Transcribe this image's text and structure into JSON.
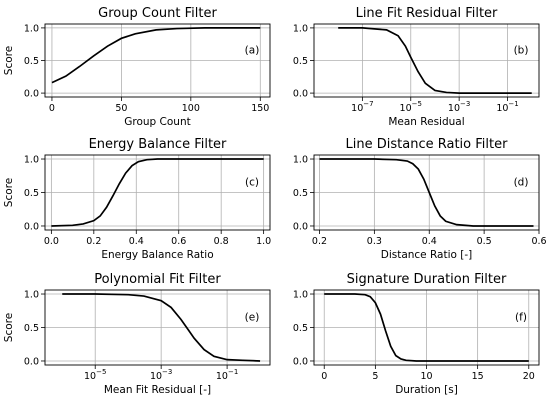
{
  "chart_data": [
    {
      "type": "line",
      "tag": "(a)",
      "title": "Group Count Filter",
      "xlabel": "Group Count",
      "ylabel": "Score",
      "xscale": "linear",
      "xlim": [
        -5,
        157
      ],
      "ylim": [
        -0.06,
        1.06
      ],
      "xticks": [
        0,
        50,
        100,
        150
      ],
      "xtick_labels": [
        "0",
        "50",
        "100",
        "150"
      ],
      "yticks": [
        0.0,
        0.5,
        1.0
      ],
      "ytick_labels": [
        "0.0",
        "0.5",
        "1.0"
      ],
      "grid": true,
      "series": [
        {
          "x": [
            0,
            10,
            20,
            30,
            40,
            50,
            60,
            75,
            90,
            110,
            130,
            150
          ],
          "y": [
            0.16,
            0.26,
            0.41,
            0.57,
            0.72,
            0.84,
            0.91,
            0.97,
            0.99,
            1.0,
            1.0,
            1.0
          ]
        }
      ]
    },
    {
      "type": "line",
      "tag": "(b)",
      "title": "Line Fit Residual Filter",
      "xlabel": "Mean Residual",
      "ylabel": "",
      "xscale": "log",
      "xlim": [
        1e-09,
        2
      ],
      "ylim": [
        -0.06,
        1.06
      ],
      "xticks": [
        1e-07,
        1e-05,
        0.001,
        0.1
      ],
      "xtick_labels": [
        "10^-7",
        "10^-5",
        "10^-3",
        "10^-1"
      ],
      "yticks": [
        0.0,
        0.5,
        1.0
      ],
      "ytick_labels": [
        "0.0",
        "0.5",
        "1.0"
      ],
      "grid": true,
      "series": [
        {
          "x": [
            1e-08,
            1e-07,
            1e-06,
            3e-06,
            6e-06,
            1e-05,
            2e-05,
            4e-05,
            0.0001,
            0.0003,
            0.001,
            0.01,
            0.1,
            1
          ],
          "y": [
            1.0,
            1.0,
            0.97,
            0.88,
            0.72,
            0.55,
            0.33,
            0.15,
            0.04,
            0.01,
            0.0,
            0.0,
            0.0,
            0.0
          ]
        }
      ]
    },
    {
      "type": "line",
      "tag": "(c)",
      "title": "Energy Balance Filter",
      "xlabel": "Energy Balance Ratio",
      "ylabel": "Score",
      "xscale": "linear",
      "xlim": [
        -0.03,
        1.03
      ],
      "ylim": [
        -0.06,
        1.06
      ],
      "xticks": [
        0.0,
        0.2,
        0.4,
        0.6,
        0.8,
        1.0
      ],
      "xtick_labels": [
        "0.0",
        "0.2",
        "0.4",
        "0.6",
        "0.8",
        "1.0"
      ],
      "yticks": [
        0.0,
        0.5,
        1.0
      ],
      "ytick_labels": [
        "0.0",
        "0.5",
        "1.0"
      ],
      "grid": true,
      "series": [
        {
          "x": [
            0.0,
            0.1,
            0.15,
            0.2,
            0.23,
            0.26,
            0.29,
            0.32,
            0.35,
            0.38,
            0.41,
            0.45,
            0.5,
            0.6,
            0.8,
            1.0
          ],
          "y": [
            0.0,
            0.01,
            0.03,
            0.08,
            0.15,
            0.28,
            0.45,
            0.63,
            0.79,
            0.9,
            0.96,
            0.99,
            1.0,
            1.0,
            1.0,
            1.0
          ]
        }
      ]
    },
    {
      "type": "line",
      "tag": "(d)",
      "title": "Line Distance Ratio Filter",
      "xlabel": "Distance Ratio [-]",
      "ylabel": "",
      "xscale": "linear",
      "xlim": [
        0.19,
        0.6
      ],
      "ylim": [
        -0.06,
        1.06
      ],
      "xticks": [
        0.2,
        0.3,
        0.4,
        0.5,
        0.6
      ],
      "xtick_labels": [
        "0.2",
        "0.3",
        "0.4",
        "0.5",
        "0.6"
      ],
      "yticks": [
        0.0,
        0.5,
        1.0
      ],
      "ytick_labels": [
        "0.0",
        "0.5",
        "1.0"
      ],
      "grid": true,
      "series": [
        {
          "x": [
            0.2,
            0.3,
            0.34,
            0.36,
            0.37,
            0.38,
            0.39,
            0.4,
            0.41,
            0.42,
            0.43,
            0.45,
            0.48,
            0.55,
            0.59
          ],
          "y": [
            1.0,
            1.0,
            0.99,
            0.97,
            0.93,
            0.85,
            0.7,
            0.5,
            0.3,
            0.15,
            0.07,
            0.02,
            0.0,
            0.0,
            0.0
          ]
        }
      ]
    },
    {
      "type": "line",
      "tag": "(e)",
      "title": "Polynomial Fit Filter",
      "xlabel": "Mean Fit Residual [-]",
      "ylabel": "Score",
      "xscale": "log",
      "xlim": [
        3e-07,
        2
      ],
      "ylim": [
        -0.06,
        1.06
      ],
      "xticks": [
        1e-05,
        0.001,
        0.1
      ],
      "xtick_labels": [
        "10^-5",
        "10^-3",
        "10^-1"
      ],
      "yticks": [
        0.0,
        0.5,
        1.0
      ],
      "ytick_labels": [
        "0.0",
        "0.5",
        "1.0"
      ],
      "grid": true,
      "series": [
        {
          "x": [
            1e-06,
            1e-05,
            0.0001,
            0.0003,
            0.001,
            0.002,
            0.004,
            0.007,
            0.01,
            0.02,
            0.04,
            0.1,
            0.3,
            1
          ],
          "y": [
            1.0,
            1.0,
            0.99,
            0.97,
            0.9,
            0.8,
            0.62,
            0.45,
            0.34,
            0.17,
            0.07,
            0.02,
            0.01,
            0.0
          ]
        }
      ]
    },
    {
      "type": "line",
      "tag": "(f)",
      "title": "Signature Duration Filter",
      "xlabel": "Duration [s]",
      "ylabel": "",
      "xscale": "linear",
      "xlim": [
        -1,
        21
      ],
      "ylim": [
        -0.06,
        1.06
      ],
      "xticks": [
        0,
        5,
        10,
        15,
        20
      ],
      "xtick_labels": [
        "0",
        "5",
        "10",
        "15",
        "20"
      ],
      "yticks": [
        0.0,
        0.5,
        1.0
      ],
      "ytick_labels": [
        "0.0",
        "0.5",
        "1.0"
      ],
      "grid": true,
      "series": [
        {
          "x": [
            0,
            3,
            4,
            4.5,
            5,
            5.5,
            6,
            6.5,
            7,
            7.5,
            8,
            9,
            12,
            20
          ],
          "y": [
            1.0,
            1.0,
            0.99,
            0.96,
            0.87,
            0.7,
            0.45,
            0.22,
            0.08,
            0.03,
            0.01,
            0.0,
            0.0,
            0.0
          ]
        }
      ]
    }
  ]
}
